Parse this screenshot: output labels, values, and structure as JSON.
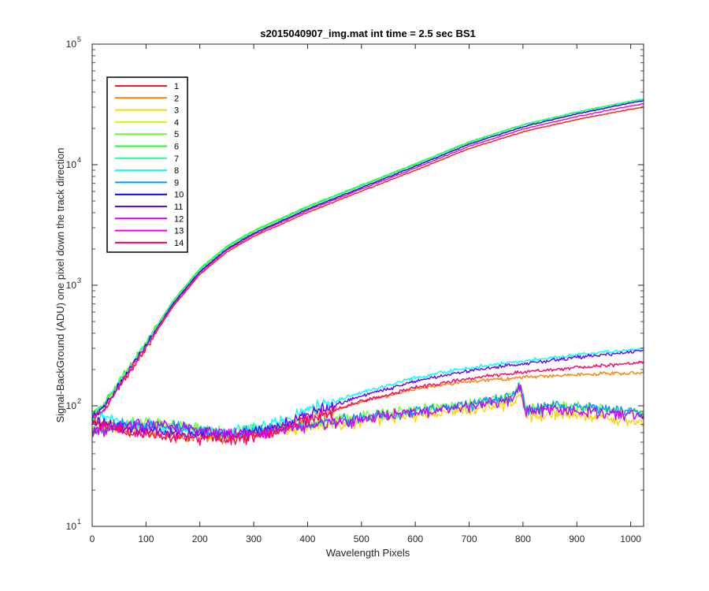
{
  "chart_data": {
    "type": "line",
    "title": "s2015040907_img.mat int time = 2.5 sec   BS1",
    "xlabel": "Wavelength Pixels",
    "ylabel": "Signal-BackGround (ADU) one pixel down the track direction",
    "xlim": [
      0,
      1024
    ],
    "ylim": [
      10,
      100000
    ],
    "yscale": "log",
    "x_ticks": [
      "0",
      "100",
      "200",
      "300",
      "400",
      "500",
      "600",
      "700",
      "800",
      "900",
      "1000"
    ],
    "y_ticks": [
      {
        "base": "10",
        "exp": "1",
        "value": 10
      },
      {
        "base": "10",
        "exp": "2",
        "value": 100
      },
      {
        "base": "10",
        "exp": "3",
        "value": 1000
      },
      {
        "base": "10",
        "exp": "4",
        "value": 10000
      },
      {
        "base": "10",
        "exp": "5",
        "value": 100000
      }
    ],
    "grid": false,
    "legend_position": "top-left",
    "series": [
      {
        "name": "1",
        "color": "#ff1a1a",
        "group": "high",
        "scale": 0.95,
        "end": 30000
      },
      {
        "name": "2",
        "color": "#ff8000",
        "group": "mid",
        "scale": 1.0,
        "end": 190
      },
      {
        "name": "3",
        "color": "#ffd500",
        "group": "low",
        "scale": 0.98,
        "end": 70
      },
      {
        "name": "4",
        "color": "#bfff00",
        "group": "high",
        "scale": 1.03,
        "end": 35000
      },
      {
        "name": "5",
        "color": "#66ff33",
        "group": "low",
        "scale": 1.05,
        "end": 85
      },
      {
        "name": "6",
        "color": "#1aff1a",
        "group": "high",
        "scale": 1.06,
        "end": 35000
      },
      {
        "name": "7",
        "color": "#1aff99",
        "group": "high",
        "scale": 1.04,
        "end": 35000
      },
      {
        "name": "8",
        "color": "#00ffff",
        "group": "mid",
        "scale": 1.1,
        "end": 300
      },
      {
        "name": "9",
        "color": "#0099ff",
        "group": "low",
        "scale": 1.0,
        "end": 85
      },
      {
        "name": "10",
        "color": "#0000ff",
        "group": "high",
        "scale": 1.0,
        "end": 34000
      },
      {
        "name": "11",
        "color": "#6600ff",
        "group": "mid",
        "scale": 1.02,
        "end": 290
      },
      {
        "name": "12",
        "color": "#cc00ff",
        "group": "low",
        "scale": 1.0,
        "end": 80
      },
      {
        "name": "13",
        "color": "#ff00cc",
        "group": "high",
        "scale": 0.98,
        "end": 32000
      },
      {
        "name": "14",
        "color": "#ff0066",
        "group": "mid",
        "scale": 0.95,
        "end": 230
      }
    ]
  }
}
